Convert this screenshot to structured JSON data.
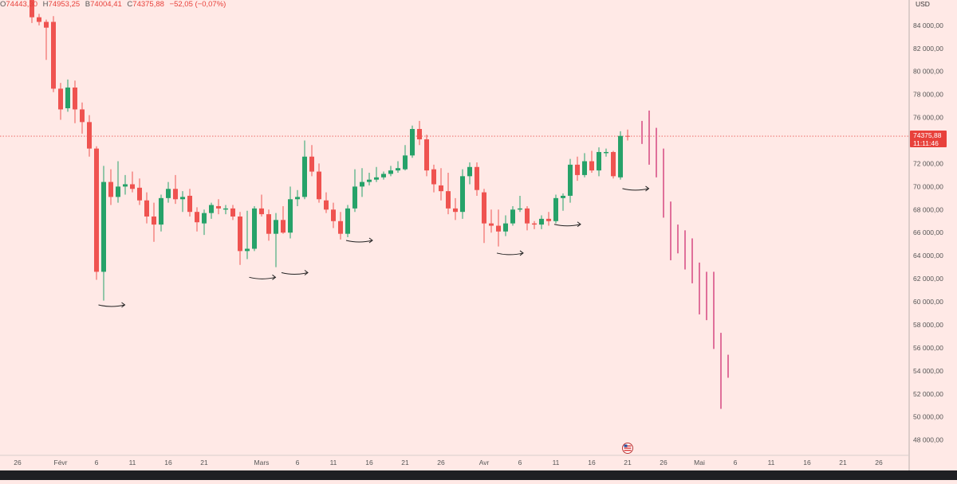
{
  "header": {
    "ohlc": [
      {
        "label": "O",
        "value": "74443,30"
      },
      {
        "label": "H",
        "value": "74953,25"
      },
      {
        "label": "B",
        "value": "74004,41"
      },
      {
        "label": "C",
        "value": "74375,88"
      },
      {
        "label": "",
        "value": "−52,05 (−0,07%)"
      }
    ]
  },
  "price_axis": {
    "currency": "USD",
    "last_price": "74375,88",
    "countdown": "11:11:46"
  },
  "colors": {
    "background": "#ffe9e6",
    "up": "#26a269",
    "down": "#ef5350",
    "projection": "#e0709a",
    "last_price": "#e8413b"
  },
  "event_icon": "us-flag-icon",
  "chart_data": {
    "type": "candlestick",
    "title": "",
    "xlabel": "",
    "ylabel": "",
    "ylim": [
      46800,
      86200
    ],
    "y_ticks": [
      48000,
      50000,
      52000,
      54000,
      56000,
      58000,
      60000,
      62000,
      64000,
      66000,
      68000,
      70000,
      72000,
      74000,
      76000,
      78000,
      80000,
      82000,
      84000
    ],
    "y_tick_labels": [
      "48 000,00",
      "50 000,00",
      "52 000,00",
      "54 000,00",
      "56 000,00",
      "58 000,00",
      "60 000,00",
      "62 000,00",
      "64 000,00",
      "66 000,00",
      "68 000,00",
      "70 000,00",
      "72 000,00",
      "74 000,00",
      "76 000,00",
      "78 000,00",
      "80 000,00",
      "82 000,00",
      "84 000,00"
    ],
    "x_labels": [
      {
        "day": -5,
        "label": "26"
      },
      {
        "day": 1,
        "label": "Févr"
      },
      {
        "day": 6,
        "label": "6"
      },
      {
        "day": 11,
        "label": "11"
      },
      {
        "day": 16,
        "label": "16"
      },
      {
        "day": 21,
        "label": "21"
      },
      {
        "day": 29,
        "label": "Mars"
      },
      {
        "day": 34,
        "label": "6"
      },
      {
        "day": 39,
        "label": "11"
      },
      {
        "day": 44,
        "label": "16"
      },
      {
        "day": 49,
        "label": "21"
      },
      {
        "day": 54,
        "label": "26"
      },
      {
        "day": 60,
        "label": "Avr"
      },
      {
        "day": 65,
        "label": "6"
      },
      {
        "day": 70,
        "label": "11"
      },
      {
        "day": 75,
        "label": "16"
      },
      {
        "day": 80,
        "label": "21"
      },
      {
        "day": 85,
        "label": "26"
      },
      {
        "day": 90,
        "label": "Mai"
      },
      {
        "day": 95,
        "label": "6"
      },
      {
        "day": 100,
        "label": "11"
      },
      {
        "day": 105,
        "label": "16"
      },
      {
        "day": 110,
        "label": "21"
      },
      {
        "day": 115,
        "label": "26"
      }
    ],
    "candles": [
      {
        "d": -3,
        "o": 86200,
        "h": 86400,
        "l": 84200,
        "c": 84700
      },
      {
        "d": -2,
        "o": 84700,
        "h": 85000,
        "l": 84000,
        "c": 84300
      },
      {
        "d": -1,
        "o": 84300,
        "h": 84500,
        "l": 81000,
        "c": 83800
      },
      {
        "d": 0,
        "o": 84300,
        "h": 84800,
        "l": 78200,
        "c": 78500
      },
      {
        "d": 1,
        "o": 78500,
        "h": 79000,
        "l": 75800,
        "c": 76700
      },
      {
        "d": 2,
        "o": 76800,
        "h": 79300,
        "l": 76500,
        "c": 78600
      },
      {
        "d": 3,
        "o": 78600,
        "h": 79200,
        "l": 75500,
        "c": 76700
      },
      {
        "d": 4,
        "o": 76700,
        "h": 77300,
        "l": 74600,
        "c": 75600
      },
      {
        "d": 5,
        "o": 75600,
        "h": 76200,
        "l": 72600,
        "c": 73300
      },
      {
        "d": 6,
        "o": 73300,
        "h": 73500,
        "l": 61900,
        "c": 62600
      },
      {
        "d": 7,
        "o": 62600,
        "h": 71800,
        "l": 60100,
        "c": 70400
      },
      {
        "d": 8,
        "o": 70400,
        "h": 71500,
        "l": 68400,
        "c": 69100
      },
      {
        "d": 9,
        "o": 69100,
        "h": 72200,
        "l": 68600,
        "c": 70000
      },
      {
        "d": 10,
        "o": 70000,
        "h": 71000,
        "l": 69300,
        "c": 70200
      },
      {
        "d": 11,
        "o": 70200,
        "h": 71300,
        "l": 69500,
        "c": 69800
      },
      {
        "d": 12,
        "o": 69900,
        "h": 70700,
        "l": 68400,
        "c": 68800
      },
      {
        "d": 13,
        "o": 68800,
        "h": 69500,
        "l": 66800,
        "c": 67400
      },
      {
        "d": 14,
        "o": 67400,
        "h": 68600,
        "l": 65200,
        "c": 66700
      },
      {
        "d": 15,
        "o": 66700,
        "h": 69300,
        "l": 66100,
        "c": 69000
      },
      {
        "d": 16,
        "o": 69000,
        "h": 70400,
        "l": 68600,
        "c": 69800
      },
      {
        "d": 17,
        "o": 69800,
        "h": 71000,
        "l": 68500,
        "c": 68900
      },
      {
        "d": 18,
        "o": 68900,
        "h": 69600,
        "l": 67800,
        "c": 69100
      },
      {
        "d": 19,
        "o": 69200,
        "h": 69800,
        "l": 67400,
        "c": 67800
      },
      {
        "d": 20,
        "o": 67800,
        "h": 68200,
        "l": 66100,
        "c": 66900
      },
      {
        "d": 21,
        "o": 66800,
        "h": 68000,
        "l": 65800,
        "c": 67700
      },
      {
        "d": 22,
        "o": 67700,
        "h": 68600,
        "l": 67200,
        "c": 68400
      },
      {
        "d": 23,
        "o": 68300,
        "h": 68900,
        "l": 67600,
        "c": 68100
      },
      {
        "d": 24,
        "o": 68000,
        "h": 68400,
        "l": 67600,
        "c": 68100
      },
      {
        "d": 25,
        "o": 68100,
        "h": 68400,
        "l": 67100,
        "c": 67400
      },
      {
        "d": 26,
        "o": 67400,
        "h": 67800,
        "l": 63200,
        "c": 64400
      },
      {
        "d": 27,
        "o": 64400,
        "h": 67900,
        "l": 63700,
        "c": 64600
      },
      {
        "d": 28,
        "o": 64600,
        "h": 68300,
        "l": 64400,
        "c": 68100
      },
      {
        "d": 29,
        "o": 68100,
        "h": 69300,
        "l": 67400,
        "c": 67600
      },
      {
        "d": 30,
        "o": 67600,
        "h": 68000,
        "l": 65300,
        "c": 65900
      },
      {
        "d": 31,
        "o": 65900,
        "h": 67700,
        "l": 63000,
        "c": 67100
      },
      {
        "d": 32,
        "o": 67100,
        "h": 68300,
        "l": 65900,
        "c": 66000
      },
      {
        "d": 33,
        "o": 66000,
        "h": 70000,
        "l": 65500,
        "c": 68900
      },
      {
        "d": 34,
        "o": 68900,
        "h": 69700,
        "l": 68300,
        "c": 69100
      },
      {
        "d": 35,
        "o": 69100,
        "h": 74000,
        "l": 68900,
        "c": 72600
      },
      {
        "d": 36,
        "o": 72600,
        "h": 73600,
        "l": 70900,
        "c": 71300
      },
      {
        "d": 37,
        "o": 71300,
        "h": 72000,
        "l": 68600,
        "c": 68900
      },
      {
        "d": 38,
        "o": 68800,
        "h": 69500,
        "l": 67700,
        "c": 68000
      },
      {
        "d": 39,
        "o": 68000,
        "h": 68600,
        "l": 66400,
        "c": 67000
      },
      {
        "d": 40,
        "o": 67000,
        "h": 67800,
        "l": 65400,
        "c": 65900
      },
      {
        "d": 41,
        "o": 65900,
        "h": 68400,
        "l": 65600,
        "c": 68100
      },
      {
        "d": 42,
        "o": 68100,
        "h": 71500,
        "l": 67800,
        "c": 70000
      },
      {
        "d": 43,
        "o": 70000,
        "h": 71600,
        "l": 69100,
        "c": 70400
      },
      {
        "d": 44,
        "o": 70400,
        "h": 71200,
        "l": 70100,
        "c": 70600
      },
      {
        "d": 45,
        "o": 70600,
        "h": 71700,
        "l": 70400,
        "c": 70800
      },
      {
        "d": 46,
        "o": 70800,
        "h": 71300,
        "l": 70600,
        "c": 71100
      },
      {
        "d": 47,
        "o": 71100,
        "h": 71800,
        "l": 70900,
        "c": 71400
      },
      {
        "d": 48,
        "o": 71400,
        "h": 72200,
        "l": 71200,
        "c": 71600
      },
      {
        "d": 49,
        "o": 71500,
        "h": 73600,
        "l": 71400,
        "c": 72700
      },
      {
        "d": 50,
        "o": 72700,
        "h": 75300,
        "l": 72500,
        "c": 75000
      },
      {
        "d": 51,
        "o": 75000,
        "h": 75700,
        "l": 73600,
        "c": 74100
      },
      {
        "d": 52,
        "o": 74100,
        "h": 74500,
        "l": 70900,
        "c": 71400
      },
      {
        "d": 53,
        "o": 71500,
        "h": 71900,
        "l": 69500,
        "c": 70200
      },
      {
        "d": 54,
        "o": 70100,
        "h": 71600,
        "l": 68800,
        "c": 69600
      },
      {
        "d": 55,
        "o": 69600,
        "h": 71200,
        "l": 67600,
        "c": 68100
      },
      {
        "d": 56,
        "o": 68100,
        "h": 69000,
        "l": 67100,
        "c": 67800
      },
      {
        "d": 57,
        "o": 67800,
        "h": 71500,
        "l": 67200,
        "c": 70900
      },
      {
        "d": 58,
        "o": 70900,
        "h": 72100,
        "l": 70200,
        "c": 71700
      },
      {
        "d": 59,
        "o": 71700,
        "h": 72100,
        "l": 69200,
        "c": 69700
      },
      {
        "d": 60,
        "o": 69500,
        "h": 69800,
        "l": 65100,
        "c": 66800
      },
      {
        "d": 61,
        "o": 66800,
        "h": 68000,
        "l": 66000,
        "c": 66600
      },
      {
        "d": 62,
        "o": 66600,
        "h": 68000,
        "l": 64800,
        "c": 66100
      },
      {
        "d": 63,
        "o": 66100,
        "h": 67500,
        "l": 65700,
        "c": 66800
      },
      {
        "d": 64,
        "o": 66800,
        "h": 68300,
        "l": 66600,
        "c": 68000
      },
      {
        "d": 65,
        "o": 68000,
        "h": 69200,
        "l": 67800,
        "c": 68100
      },
      {
        "d": 66,
        "o": 68100,
        "h": 68300,
        "l": 66200,
        "c": 66800
      },
      {
        "d": 67,
        "o": 66800,
        "h": 67000,
        "l": 66300,
        "c": 66700
      },
      {
        "d": 68,
        "o": 66700,
        "h": 67500,
        "l": 66300,
        "c": 67200
      },
      {
        "d": 69,
        "o": 67200,
        "h": 67800,
        "l": 66600,
        "c": 67000
      },
      {
        "d": 70,
        "o": 67000,
        "h": 69300,
        "l": 66800,
        "c": 69000
      },
      {
        "d": 71,
        "o": 69000,
        "h": 69400,
        "l": 67900,
        "c": 69200
      },
      {
        "d": 72,
        "o": 69200,
        "h": 72400,
        "l": 68600,
        "c": 71900
      },
      {
        "d": 73,
        "o": 71900,
        "h": 72600,
        "l": 70500,
        "c": 71000
      },
      {
        "d": 74,
        "o": 71000,
        "h": 72900,
        "l": 70800,
        "c": 72200
      },
      {
        "d": 75,
        "o": 72200,
        "h": 73100,
        "l": 71200,
        "c": 71400
      },
      {
        "d": 76,
        "o": 71400,
        "h": 73400,
        "l": 70900,
        "c": 73000
      },
      {
        "d": 77,
        "o": 72900,
        "h": 73300,
        "l": 72600,
        "c": 73000
      },
      {
        "d": 78,
        "o": 73000,
        "h": 73100,
        "l": 70700,
        "c": 70900
      },
      {
        "d": 79,
        "o": 70800,
        "h": 74800,
        "l": 70600,
        "c": 74400
      },
      {
        "d": 80,
        "o": 74400,
        "h": 74950,
        "l": 74000,
        "c": 74376
      }
    ],
    "projection_bars": [
      {
        "d": 82,
        "h": 75700,
        "l": 73700
      },
      {
        "d": 83,
        "h": 76600,
        "l": 71900
      },
      {
        "d": 84,
        "h": 75100,
        "l": 70800
      },
      {
        "d": 85,
        "h": 73300,
        "l": 67300
      },
      {
        "d": 86,
        "h": 68700,
        "l": 63600
      },
      {
        "d": 87,
        "h": 66700,
        "l": 64200
      },
      {
        "d": 88,
        "h": 66200,
        "l": 62800
      },
      {
        "d": 89,
        "h": 65500,
        "l": 61600
      },
      {
        "d": 90,
        "h": 63400,
        "l": 58900
      },
      {
        "d": 91,
        "h": 62600,
        "l": 58400
      },
      {
        "d": 92,
        "h": 62600,
        "l": 55900
      },
      {
        "d": 93,
        "h": 57300,
        "l": 50700
      },
      {
        "d": 94,
        "h": 55400,
        "l": 53400
      }
    ],
    "annotations": [
      {
        "d": 6.5,
        "price": 60000
      },
      {
        "d": 27.5,
        "price": 62400
      },
      {
        "d": 32,
        "price": 62800
      },
      {
        "d": 41,
        "price": 65600
      },
      {
        "d": 62,
        "price": 64500
      },
      {
        "d": 70,
        "price": 67000
      },
      {
        "d": 79.5,
        "price": 70100
      }
    ]
  }
}
